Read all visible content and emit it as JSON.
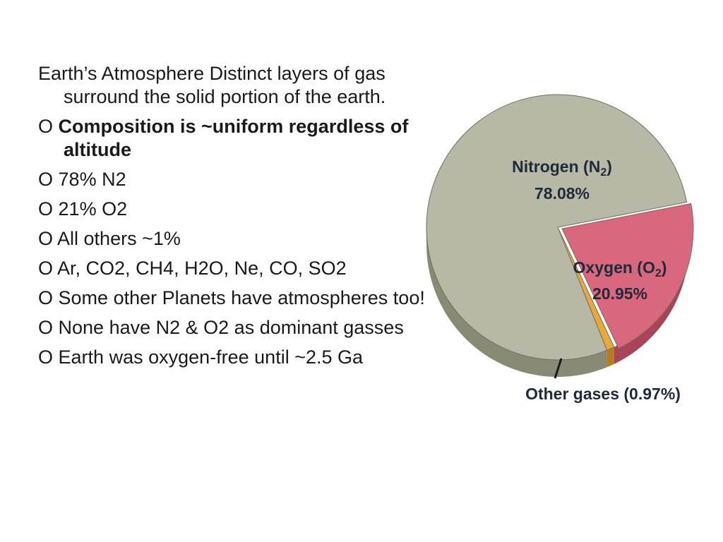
{
  "slide": {
    "intro": "Earth’s Atmosphere Distinct layers of gas surround the solid portion of the earth.",
    "bullet_marker": "O",
    "bullets": [
      {
        "text": "Composition is ~uniform regardless of altitude",
        "bold": true
      },
      {
        "text": "78% N2",
        "bold": false
      },
      {
        "text": "21% O2",
        "bold": false
      },
      {
        "text": "All others ~1%",
        "bold": false
      },
      {
        "text": "Ar, CO2, CH4, H2O, Ne, CO, SO2",
        "bold": false
      },
      {
        "text": "Some other Planets have atmospheres too!",
        "bold": false
      },
      {
        "text": "None have N2 & O2 as dominant gasses",
        "bold": false
      },
      {
        "text": "Earth was oxygen-free until ~2.5 Ga",
        "bold": false
      }
    ]
  },
  "chart_data": {
    "type": "pie",
    "title": "",
    "slices": [
      {
        "name": "Nitrogen (N2)",
        "label_main": "Nitrogen (N",
        "label_sub": "2",
        "label_end": ")",
        "value_label": "78.08%",
        "value": 78.08,
        "color": "#b7b8a5",
        "side_color": "#888a74"
      },
      {
        "name": "Oxygen (O2)",
        "label_main": "Oxygen (O",
        "label_sub": "2",
        "label_end": ")",
        "value_label": "20.95%",
        "value": 20.95,
        "color": "#d9677e",
        "side_color": "#a84358"
      },
      {
        "name": "Other gases (0.97%)",
        "label_main": "Other gases (0.97%)",
        "value": 0.97,
        "color": "#e8a93a",
        "side_color": "#b97c1c"
      }
    ],
    "label_color": "#1f2a3a"
  }
}
